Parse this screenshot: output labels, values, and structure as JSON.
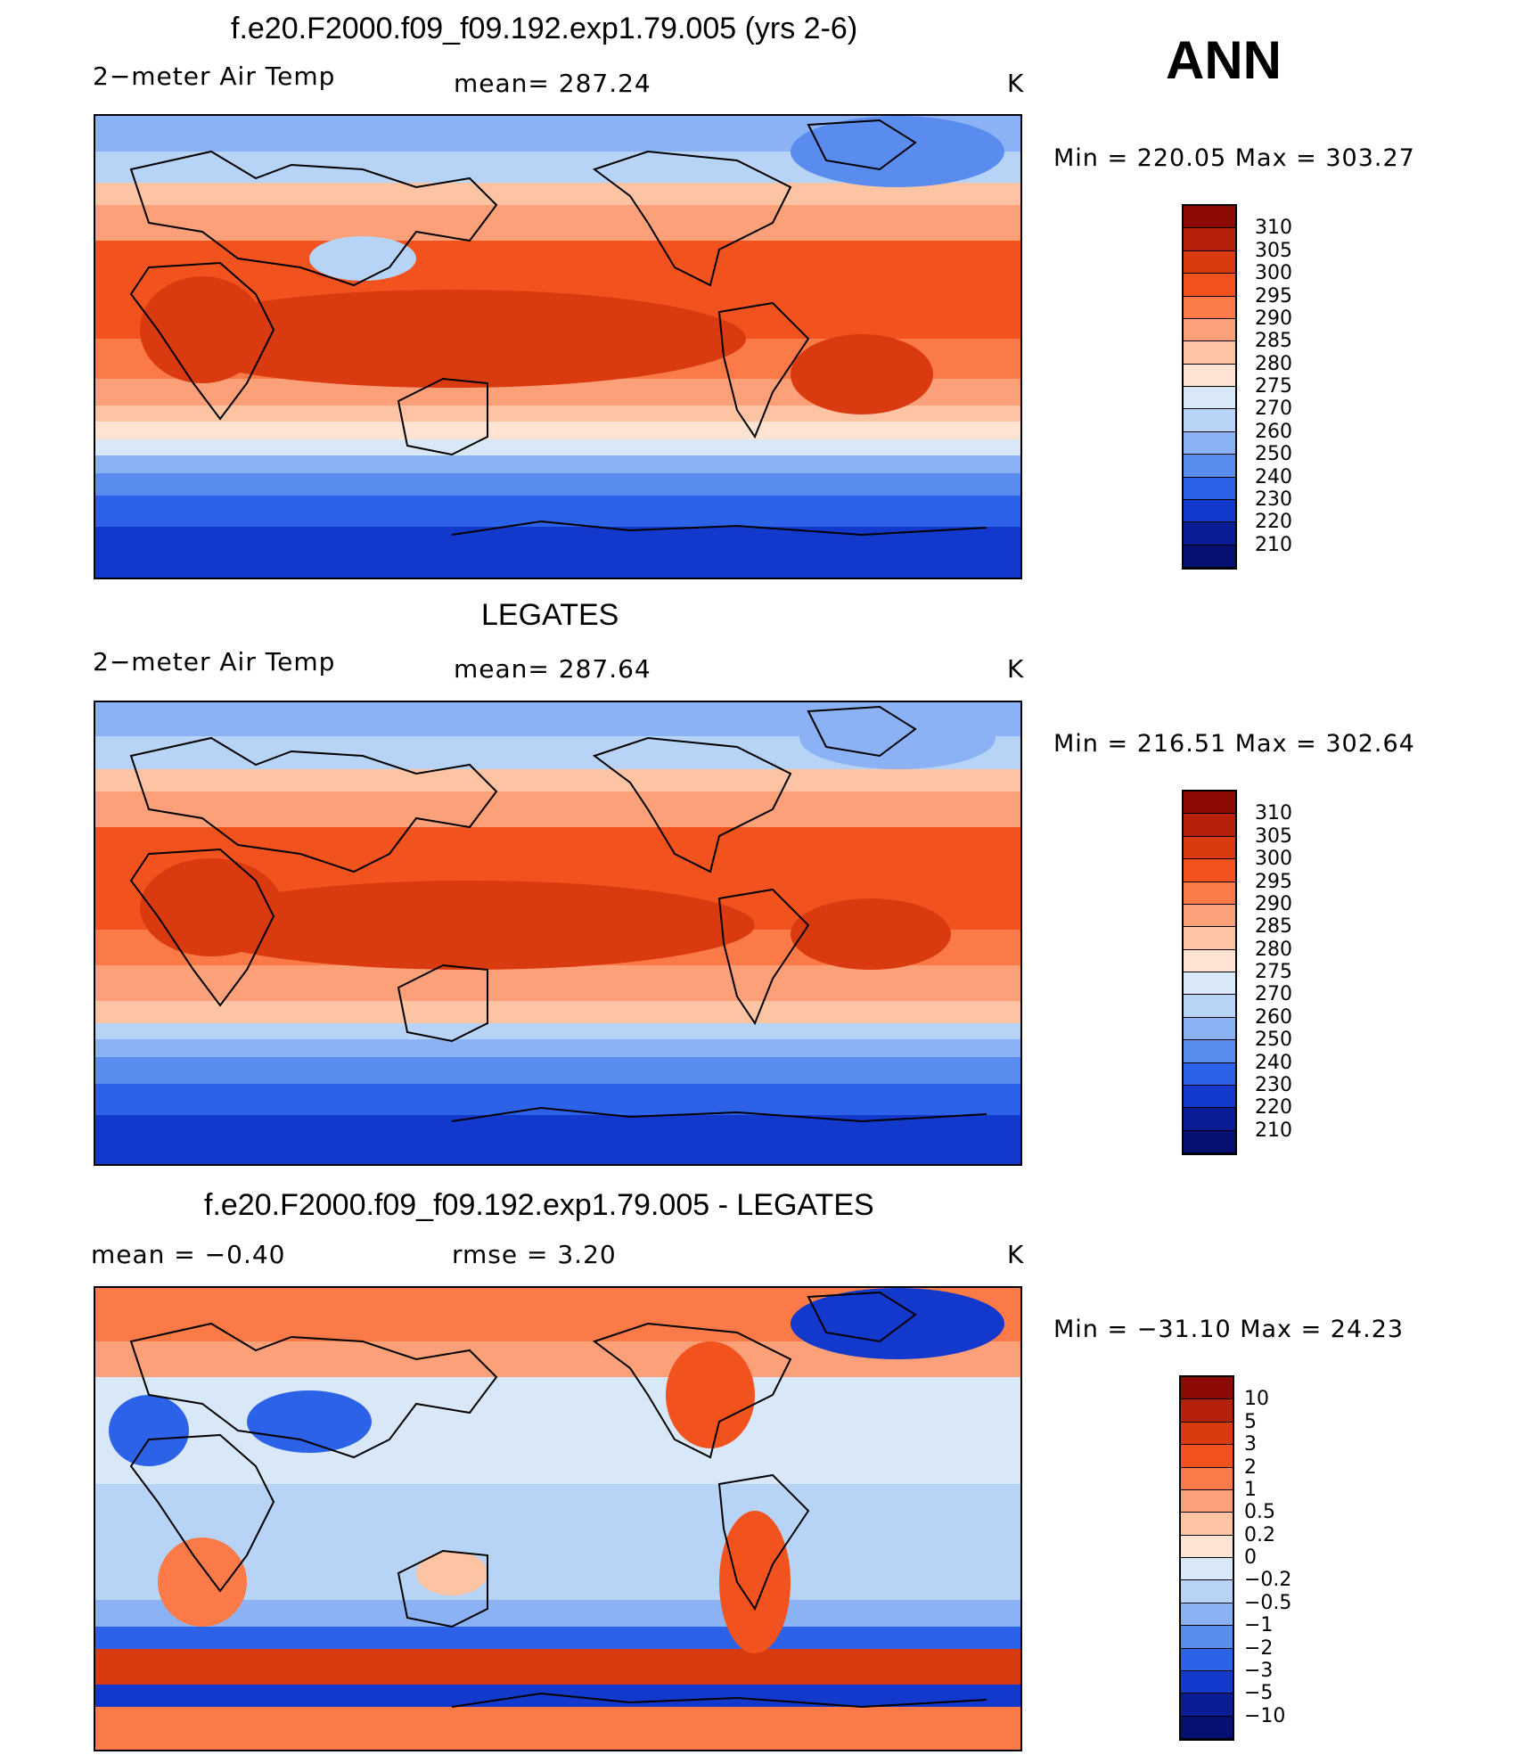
{
  "season": "ANN",
  "unit": "K",
  "panels": [
    {
      "title": "f.e20.F2000.f09_f09.192.exp1.79.005 (yrs 2-6)",
      "left_label": "2−meter Air Temp",
      "center_label": "mean=  287.24",
      "right_label": "K",
      "minmax": "Min  =  220.05  Max  =  303.27",
      "colorbar": {
        "labels": [
          "310",
          "305",
          "300",
          "295",
          "290",
          "285",
          "280",
          "275",
          "270",
          "260",
          "250",
          "240",
          "230",
          "220",
          "210"
        ],
        "colors": [
          "#8b0a02",
          "#b5200b",
          "#d93a10",
          "#f2531e",
          "#fb7a47",
          "#fca07a",
          "#fdc4a4",
          "#fee3d2",
          "#d9e8f8",
          "#b7d3f6",
          "#8bb2f4",
          "#5a8cf0",
          "#2c62e8",
          "#1238cc",
          "#0a1c96",
          "#061070"
        ]
      }
    },
    {
      "title": "LEGATES",
      "left_label": "2−meter Air Temp",
      "center_label": "mean=  287.64",
      "right_label": "K",
      "minmax": "Min  =  216.51  Max  =  302.64",
      "colorbar": {
        "labels": [
          "310",
          "305",
          "300",
          "295",
          "290",
          "285",
          "280",
          "275",
          "270",
          "260",
          "250",
          "240",
          "230",
          "220",
          "210"
        ],
        "colors": [
          "#8b0a02",
          "#b5200b",
          "#d93a10",
          "#f2531e",
          "#fb7a47",
          "#fca07a",
          "#fdc4a4",
          "#fee3d2",
          "#d9e8f8",
          "#b7d3f6",
          "#8bb2f4",
          "#5a8cf0",
          "#2c62e8",
          "#1238cc",
          "#0a1c96",
          "#061070"
        ]
      }
    },
    {
      "title": "f.e20.F2000.f09_f09.192.exp1.79.005 - LEGATES",
      "left_label": "mean  =    −0.40",
      "center_label": "rmse  =      3.20",
      "right_label": "K",
      "minmax": "Min  =  −31.10  Max  =    24.23",
      "colorbar": {
        "labels": [
          "10",
          "5",
          "3",
          "2",
          "1",
          "0.5",
          "0.2",
          "0",
          "−0.2",
          "−0.5",
          "−1",
          "−2",
          "−3",
          "−5",
          "−10"
        ],
        "colors": [
          "#8b0a02",
          "#b5200b",
          "#d93a10",
          "#f2531e",
          "#fb7a47",
          "#fca07a",
          "#fdc4a4",
          "#fee3d2",
          "#d9e8f8",
          "#b7d3f6",
          "#8bb2f4",
          "#5a8cf0",
          "#2c62e8",
          "#1238cc",
          "#0a1c96",
          "#061070"
        ]
      }
    }
  ]
}
